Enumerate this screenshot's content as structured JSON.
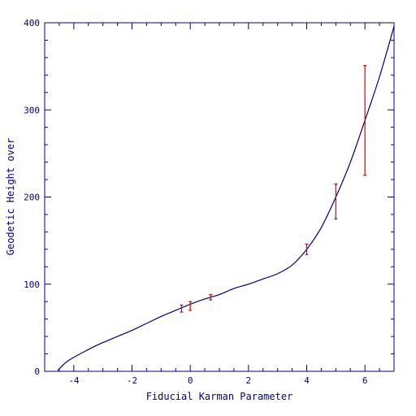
{
  "chart_data": {
    "type": "line",
    "title": "",
    "xlabel": "Fiducial Karman Parameter",
    "ylabel": "Geodetic Height over",
    "xlim": [
      -5,
      7
    ],
    "ylim": [
      0,
      400
    ],
    "x_ticks": [
      -4,
      -2,
      0,
      2,
      4,
      6
    ],
    "y_ticks": [
      0,
      100,
      200,
      300,
      400
    ],
    "x_tick_labels": [
      "-4",
      "-2",
      "0",
      "2",
      "4",
      "6"
    ],
    "y_tick_labels": [
      "0",
      "100",
      "200",
      "300",
      "400"
    ],
    "grid": false,
    "legend": "none",
    "colors": {
      "axis": "#00008b",
      "curve": "#000080",
      "errorbar": "#dd0000"
    },
    "series": [
      {
        "kind": "curve",
        "x": [
          -4.55,
          -4.2,
          -3.5,
          -3.0,
          -2.5,
          -2.0,
          -1.5,
          -1.0,
          -0.5,
          0.0,
          0.5,
          1.0,
          1.5,
          2.0,
          2.5,
          3.0,
          3.5,
          4.0,
          4.5,
          5.0,
          5.5,
          6.0,
          6.5,
          7.0
        ],
        "y": [
          1,
          12,
          25,
          33,
          40,
          47,
          55,
          63,
          70,
          77,
          83,
          88,
          95,
          100,
          106,
          112,
          122,
          140,
          165,
          200,
          240,
          288,
          338,
          396
        ]
      },
      {
        "kind": "errorbars",
        "x": [
          -0.3,
          0.0,
          0.7,
          4.0,
          5.0,
          6.0
        ],
        "y": [
          72,
          75,
          85,
          140,
          195,
          288
        ],
        "ylow": [
          68,
          70,
          82,
          134,
          175,
          225
        ],
        "yhigh": [
          76,
          80,
          88,
          146,
          215,
          351
        ]
      }
    ]
  }
}
